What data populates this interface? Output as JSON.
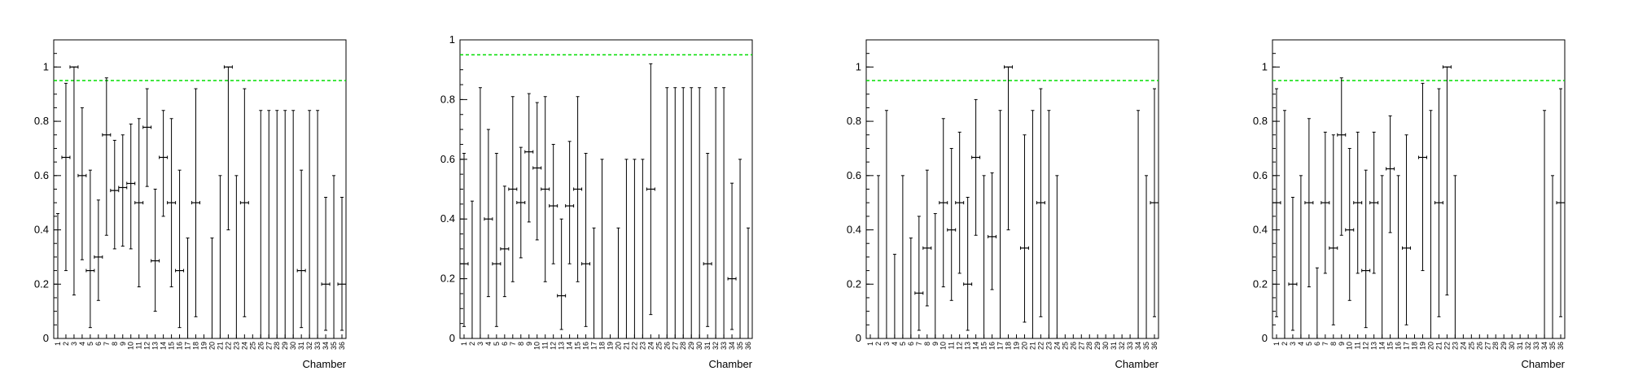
{
  "chart_data": [
    {
      "type": "scatter",
      "xlabel": "Chamber",
      "ylim": [
        0,
        1.1
      ],
      "yticks": [
        "0",
        "0.2",
        "0.4",
        "0.6",
        "0.8",
        "1"
      ],
      "categories": [
        "1",
        "2",
        "3",
        "4",
        "5",
        "6",
        "7",
        "8",
        "9",
        "10",
        "11",
        "12",
        "13",
        "14",
        "15",
        "16",
        "17",
        "18",
        "19",
        "20",
        "21",
        "22",
        "23",
        "24",
        "25",
        "26",
        "27",
        "28",
        "29",
        "30",
        "31",
        "32",
        "33",
        "34",
        "35",
        "36"
      ],
      "reference_line": 0.95,
      "reference_color": "#00dd00",
      "points": [
        {
          "x": 1,
          "y": null,
          "lo": 0,
          "hi": 0.46
        },
        {
          "x": 2,
          "y": 0.667,
          "lo": 0.25,
          "hi": 0.94
        },
        {
          "x": 3,
          "y": 1.0,
          "lo": 0.16,
          "hi": 1.0
        },
        {
          "x": 4,
          "y": 0.6,
          "lo": 0.29,
          "hi": 0.85
        },
        {
          "x": 5,
          "y": 0.25,
          "lo": 0.04,
          "hi": 0.62
        },
        {
          "x": 6,
          "y": 0.3,
          "lo": 0.14,
          "hi": 0.51
        },
        {
          "x": 7,
          "y": 0.75,
          "lo": 0.38,
          "hi": 0.96
        },
        {
          "x": 8,
          "y": 0.545,
          "lo": 0.33,
          "hi": 0.73
        },
        {
          "x": 9,
          "y": 0.556,
          "lo": 0.34,
          "hi": 0.75
        },
        {
          "x": 10,
          "y": 0.571,
          "lo": 0.33,
          "hi": 0.79
        },
        {
          "x": 11,
          "y": 0.5,
          "lo": 0.19,
          "hi": 0.81
        },
        {
          "x": 12,
          "y": 0.778,
          "lo": 0.56,
          "hi": 0.92
        },
        {
          "x": 13,
          "y": 0.286,
          "lo": 0.1,
          "hi": 0.55
        },
        {
          "x": 14,
          "y": 0.667,
          "lo": 0.45,
          "hi": 0.84
        },
        {
          "x": 15,
          "y": 0.5,
          "lo": 0.19,
          "hi": 0.81
        },
        {
          "x": 16,
          "y": 0.25,
          "lo": 0.04,
          "hi": 0.62
        },
        {
          "x": 17,
          "y": null,
          "lo": 0,
          "hi": 0.37
        },
        {
          "x": 18,
          "y": 0.5,
          "lo": 0.08,
          "hi": 0.92
        },
        {
          "x": 19,
          "y": null,
          "lo": 0,
          "hi": 0
        },
        {
          "x": 20,
          "y": null,
          "lo": 0,
          "hi": 0.37
        },
        {
          "x": 21,
          "y": null,
          "lo": 0,
          "hi": 0.6
        },
        {
          "x": 22,
          "y": 1.0,
          "lo": 0.4,
          "hi": 1.0
        },
        {
          "x": 23,
          "y": null,
          "lo": 0,
          "hi": 0.6
        },
        {
          "x": 24,
          "y": 0.5,
          "lo": 0.08,
          "hi": 0.92
        },
        {
          "x": 25,
          "y": null,
          "lo": 0,
          "hi": 0
        },
        {
          "x": 26,
          "y": null,
          "lo": 0,
          "hi": 0.84
        },
        {
          "x": 27,
          "y": null,
          "lo": 0,
          "hi": 0.84
        },
        {
          "x": 28,
          "y": null,
          "lo": 0,
          "hi": 0.84
        },
        {
          "x": 29,
          "y": null,
          "lo": 0,
          "hi": 0.84
        },
        {
          "x": 30,
          "y": null,
          "lo": 0,
          "hi": 0.84
        },
        {
          "x": 31,
          "y": 0.25,
          "lo": 0.04,
          "hi": 0.62
        },
        {
          "x": 32,
          "y": null,
          "lo": 0,
          "hi": 0.84
        },
        {
          "x": 33,
          "y": null,
          "lo": 0,
          "hi": 0.84
        },
        {
          "x": 34,
          "y": 0.2,
          "lo": 0.03,
          "hi": 0.52
        },
        {
          "x": 35,
          "y": null,
          "lo": 0,
          "hi": 0.6
        },
        {
          "x": 36,
          "y": 0.2,
          "lo": 0.03,
          "hi": 0.52
        }
      ]
    },
    {
      "type": "scatter",
      "xlabel": "Chamber",
      "ylim": [
        0,
        1.0
      ],
      "yticks": [
        "0",
        "0.2",
        "0.4",
        "0.6",
        "0.8",
        "1"
      ],
      "categories": [
        "1",
        "2",
        "3",
        "4",
        "5",
        "6",
        "7",
        "8",
        "9",
        "10",
        "11",
        "12",
        "13",
        "14",
        "15",
        "16",
        "17",
        "18",
        "19",
        "20",
        "21",
        "22",
        "23",
        "24",
        "25",
        "26",
        "27",
        "28",
        "29",
        "30",
        "31",
        "32",
        "33",
        "34",
        "35",
        "36"
      ],
      "reference_line": 0.95,
      "reference_color": "#00dd00",
      "points": [
        {
          "x": 1,
          "y": 0.25,
          "lo": 0.04,
          "hi": 0.62
        },
        {
          "x": 2,
          "y": null,
          "lo": 0,
          "hi": 0.46
        },
        {
          "x": 3,
          "y": null,
          "lo": 0,
          "hi": 0.84
        },
        {
          "x": 4,
          "y": 0.4,
          "lo": 0.14,
          "hi": 0.7
        },
        {
          "x": 5,
          "y": 0.25,
          "lo": 0.04,
          "hi": 0.62
        },
        {
          "x": 6,
          "y": 0.3,
          "lo": 0.14,
          "hi": 0.51
        },
        {
          "x": 7,
          "y": 0.5,
          "lo": 0.19,
          "hi": 0.81
        },
        {
          "x": 8,
          "y": 0.455,
          "lo": 0.27,
          "hi": 0.64
        },
        {
          "x": 9,
          "y": 0.625,
          "lo": 0.39,
          "hi": 0.82
        },
        {
          "x": 10,
          "y": 0.571,
          "lo": 0.33,
          "hi": 0.79
        },
        {
          "x": 11,
          "y": 0.5,
          "lo": 0.19,
          "hi": 0.81
        },
        {
          "x": 12,
          "y": 0.444,
          "lo": 0.25,
          "hi": 0.65
        },
        {
          "x": 13,
          "y": 0.143,
          "lo": 0.03,
          "hi": 0.4
        },
        {
          "x": 14,
          "y": 0.444,
          "lo": 0.25,
          "hi": 0.66
        },
        {
          "x": 15,
          "y": 0.5,
          "lo": 0.19,
          "hi": 0.81
        },
        {
          "x": 16,
          "y": 0.25,
          "lo": 0.04,
          "hi": 0.62
        },
        {
          "x": 17,
          "y": null,
          "lo": 0,
          "hi": 0.37
        },
        {
          "x": 18,
          "y": null,
          "lo": 0,
          "hi": 0.6
        },
        {
          "x": 19,
          "y": null,
          "lo": 0,
          "hi": 0
        },
        {
          "x": 20,
          "y": null,
          "lo": 0,
          "hi": 0.37
        },
        {
          "x": 21,
          "y": null,
          "lo": 0,
          "hi": 0.6
        },
        {
          "x": 22,
          "y": null,
          "lo": 0,
          "hi": 0.6
        },
        {
          "x": 23,
          "y": null,
          "lo": 0,
          "hi": 0.6
        },
        {
          "x": 24,
          "y": 0.5,
          "lo": 0.08,
          "hi": 0.92
        },
        {
          "x": 25,
          "y": null,
          "lo": 0,
          "hi": 0
        },
        {
          "x": 26,
          "y": null,
          "lo": 0,
          "hi": 0.84
        },
        {
          "x": 27,
          "y": null,
          "lo": 0,
          "hi": 0.84
        },
        {
          "x": 28,
          "y": null,
          "lo": 0,
          "hi": 0.84
        },
        {
          "x": 29,
          "y": null,
          "lo": 0,
          "hi": 0.84
        },
        {
          "x": 30,
          "y": null,
          "lo": 0,
          "hi": 0.84
        },
        {
          "x": 31,
          "y": 0.25,
          "lo": 0.04,
          "hi": 0.62
        },
        {
          "x": 32,
          "y": null,
          "lo": 0,
          "hi": 0.84
        },
        {
          "x": 33,
          "y": null,
          "lo": 0,
          "hi": 0.84
        },
        {
          "x": 34,
          "y": 0.2,
          "lo": 0.03,
          "hi": 0.52
        },
        {
          "x": 35,
          "y": null,
          "lo": 0,
          "hi": 0.6
        },
        {
          "x": 36,
          "y": null,
          "lo": 0,
          "hi": 0.37
        }
      ]
    },
    {
      "type": "scatter",
      "xlabel": "Chamber",
      "ylim": [
        0,
        1.1
      ],
      "yticks": [
        "0",
        "0.2",
        "0.4",
        "0.6",
        "0.8",
        "1"
      ],
      "categories": [
        "1",
        "2",
        "3",
        "4",
        "5",
        "6",
        "7",
        "8",
        "9",
        "10",
        "11",
        "12",
        "13",
        "14",
        "15",
        "16",
        "17",
        "18",
        "19",
        "20",
        "21",
        "22",
        "23",
        "24",
        "25",
        "26",
        "27",
        "28",
        "29",
        "30",
        "31",
        "32",
        "33",
        "34",
        "35",
        "36"
      ],
      "reference_line": 0.95,
      "reference_color": "#00dd00",
      "points": [
        {
          "x": 1,
          "y": null,
          "lo": 0,
          "hi": 0
        },
        {
          "x": 2,
          "y": null,
          "lo": 0,
          "hi": 0.6
        },
        {
          "x": 3,
          "y": null,
          "lo": 0,
          "hi": 0.84
        },
        {
          "x": 4,
          "y": null,
          "lo": 0,
          "hi": 0.31
        },
        {
          "x": 5,
          "y": null,
          "lo": 0,
          "hi": 0.6
        },
        {
          "x": 6,
          "y": null,
          "lo": 0,
          "hi": 0.37
        },
        {
          "x": 7,
          "y": 0.167,
          "lo": 0.03,
          "hi": 0.45
        },
        {
          "x": 8,
          "y": 0.333,
          "lo": 0.12,
          "hi": 0.62
        },
        {
          "x": 9,
          "y": null,
          "lo": 0,
          "hi": 0.46
        },
        {
          "x": 10,
          "y": 0.5,
          "lo": 0.19,
          "hi": 0.81
        },
        {
          "x": 11,
          "y": 0.4,
          "lo": 0.14,
          "hi": 0.7
        },
        {
          "x": 12,
          "y": 0.5,
          "lo": 0.24,
          "hi": 0.76
        },
        {
          "x": 13,
          "y": 0.2,
          "lo": 0.03,
          "hi": 0.52
        },
        {
          "x": 14,
          "y": 0.667,
          "lo": 0.38,
          "hi": 0.88
        },
        {
          "x": 15,
          "y": null,
          "lo": 0,
          "hi": 0.6
        },
        {
          "x": 16,
          "y": 0.375,
          "lo": 0.18,
          "hi": 0.61
        },
        {
          "x": 17,
          "y": null,
          "lo": 0,
          "hi": 0.84
        },
        {
          "x": 18,
          "y": 1.0,
          "lo": 0.4,
          "hi": 1.0
        },
        {
          "x": 19,
          "y": null,
          "lo": 0,
          "hi": 0
        },
        {
          "x": 20,
          "y": 0.333,
          "lo": 0.06,
          "hi": 0.75
        },
        {
          "x": 21,
          "y": null,
          "lo": 0,
          "hi": 0.84
        },
        {
          "x": 22,
          "y": 0.5,
          "lo": 0.08,
          "hi": 0.92
        },
        {
          "x": 23,
          "y": null,
          "lo": 0,
          "hi": 0.84
        },
        {
          "x": 24,
          "y": null,
          "lo": 0,
          "hi": 0.6
        },
        {
          "x": 25,
          "y": null,
          "lo": 0,
          "hi": 0
        },
        {
          "x": 26,
          "y": null,
          "lo": 0,
          "hi": 0
        },
        {
          "x": 27,
          "y": null,
          "lo": 0,
          "hi": 0
        },
        {
          "x": 28,
          "y": null,
          "lo": 0,
          "hi": 0
        },
        {
          "x": 29,
          "y": null,
          "lo": 0,
          "hi": 0
        },
        {
          "x": 30,
          "y": null,
          "lo": 0,
          "hi": 0
        },
        {
          "x": 31,
          "y": null,
          "lo": 0,
          "hi": 0
        },
        {
          "x": 32,
          "y": null,
          "lo": 0,
          "hi": 0
        },
        {
          "x": 33,
          "y": null,
          "lo": 0,
          "hi": 0
        },
        {
          "x": 34,
          "y": null,
          "lo": 0,
          "hi": 0.84
        },
        {
          "x": 35,
          "y": null,
          "lo": 0,
          "hi": 0.6
        },
        {
          "x": 36,
          "y": 0.5,
          "lo": 0.08,
          "hi": 0.92
        }
      ]
    },
    {
      "type": "scatter",
      "xlabel": "Chamber",
      "ylim": [
        0,
        1.1
      ],
      "yticks": [
        "0",
        "0.2",
        "0.4",
        "0.6",
        "0.8",
        "1"
      ],
      "categories": [
        "1",
        "2",
        "3",
        "4",
        "5",
        "6",
        "7",
        "8",
        "9",
        "10",
        "11",
        "12",
        "13",
        "14",
        "15",
        "16",
        "17",
        "18",
        "19",
        "20",
        "21",
        "22",
        "23",
        "24",
        "25",
        "26",
        "27",
        "28",
        "29",
        "30",
        "31",
        "32",
        "33",
        "34",
        "35",
        "36"
      ],
      "reference_line": 0.95,
      "reference_color": "#00dd00",
      "points": [
        {
          "x": 1,
          "y": 0.5,
          "lo": 0.08,
          "hi": 0.92
        },
        {
          "x": 2,
          "y": null,
          "lo": 0,
          "hi": 0.84
        },
        {
          "x": 3,
          "y": 0.2,
          "lo": 0.03,
          "hi": 0.52
        },
        {
          "x": 4,
          "y": null,
          "lo": 0,
          "hi": 0.6
        },
        {
          "x": 5,
          "y": 0.5,
          "lo": 0.19,
          "hi": 0.81
        },
        {
          "x": 6,
          "y": null,
          "lo": 0,
          "hi": 0.26
        },
        {
          "x": 7,
          "y": 0.5,
          "lo": 0.24,
          "hi": 0.76
        },
        {
          "x": 8,
          "y": 0.333,
          "lo": 0.05,
          "hi": 0.75
        },
        {
          "x": 9,
          "y": 0.75,
          "lo": 0.38,
          "hi": 0.96
        },
        {
          "x": 10,
          "y": 0.4,
          "lo": 0.14,
          "hi": 0.7
        },
        {
          "x": 11,
          "y": 0.5,
          "lo": 0.24,
          "hi": 0.76
        },
        {
          "x": 12,
          "y": 0.25,
          "lo": 0.04,
          "hi": 0.62
        },
        {
          "x": 13,
          "y": 0.5,
          "lo": 0.24,
          "hi": 0.76
        },
        {
          "x": 14,
          "y": null,
          "lo": 0,
          "hi": 0.6
        },
        {
          "x": 15,
          "y": 0.625,
          "lo": 0.39,
          "hi": 0.82
        },
        {
          "x": 16,
          "y": null,
          "lo": 0,
          "hi": 0.6
        },
        {
          "x": 17,
          "y": 0.333,
          "lo": 0.05,
          "hi": 0.75
        },
        {
          "x": 18,
          "y": null,
          "lo": 0,
          "hi": 0
        },
        {
          "x": 19,
          "y": 0.667,
          "lo": 0.25,
          "hi": 0.94
        },
        {
          "x": 20,
          "y": null,
          "lo": 0,
          "hi": 0.84
        },
        {
          "x": 21,
          "y": 0.5,
          "lo": 0.08,
          "hi": 0.92
        },
        {
          "x": 22,
          "y": 1.0,
          "lo": 0.16,
          "hi": 1.0
        },
        {
          "x": 23,
          "y": null,
          "lo": 0,
          "hi": 0.6
        },
        {
          "x": 24,
          "y": null,
          "lo": 0,
          "hi": 0
        },
        {
          "x": 25,
          "y": null,
          "lo": 0,
          "hi": 0
        },
        {
          "x": 26,
          "y": null,
          "lo": 0,
          "hi": 0
        },
        {
          "x": 27,
          "y": null,
          "lo": 0,
          "hi": 0
        },
        {
          "x": 28,
          "y": null,
          "lo": 0,
          "hi": 0
        },
        {
          "x": 29,
          "y": null,
          "lo": 0,
          "hi": 0
        },
        {
          "x": 30,
          "y": null,
          "lo": 0,
          "hi": 0
        },
        {
          "x": 31,
          "y": null,
          "lo": 0,
          "hi": 0
        },
        {
          "x": 32,
          "y": null,
          "lo": 0,
          "hi": 0
        },
        {
          "x": 33,
          "y": null,
          "lo": 0,
          "hi": 0
        },
        {
          "x": 34,
          "y": null,
          "lo": 0,
          "hi": 0.84
        },
        {
          "x": 35,
          "y": null,
          "lo": 0,
          "hi": 0.6
        },
        {
          "x": 36,
          "y": 0.5,
          "lo": 0.08,
          "hi": 0.92
        }
      ]
    }
  ]
}
